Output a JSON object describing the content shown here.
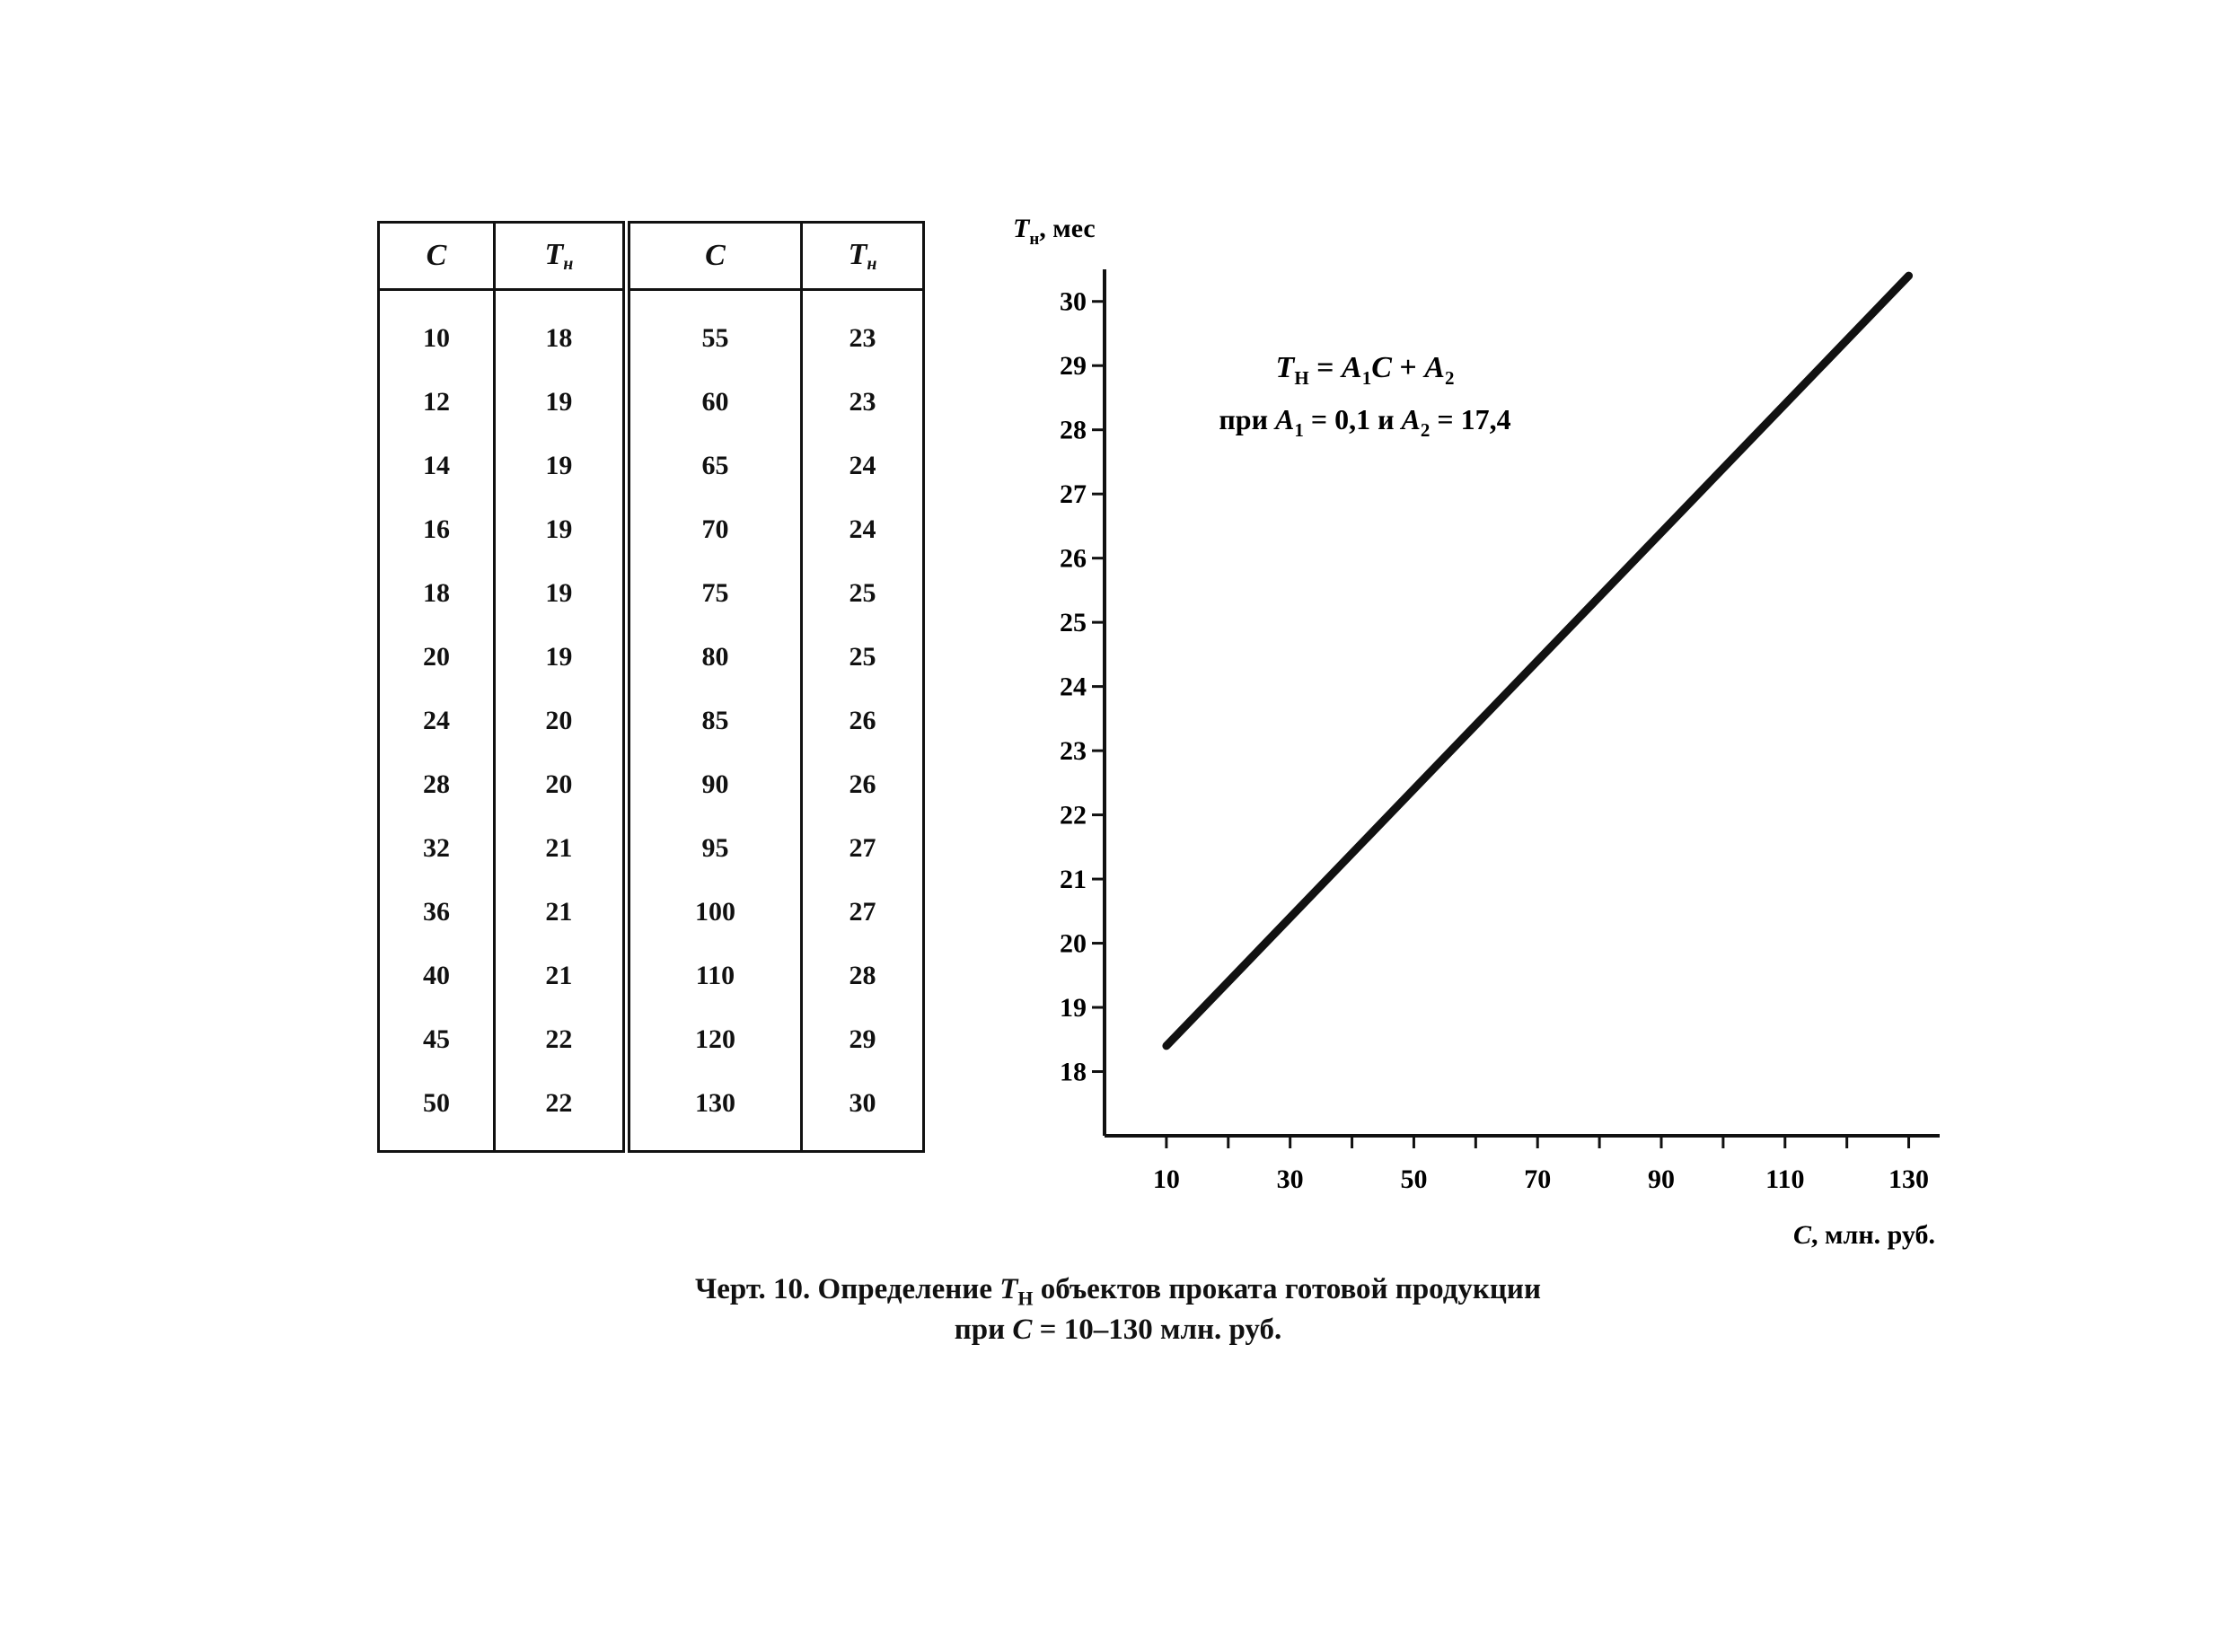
{
  "table": {
    "headers": [
      {
        "sym": "C",
        "sub": ""
      },
      {
        "sym": "T",
        "sub": "н"
      },
      {
        "sym": "C",
        "sub": ""
      },
      {
        "sym": "T",
        "sub": "н"
      }
    ],
    "left_C": [
      "10",
      "12",
      "14",
      "16",
      "18",
      "20",
      "24",
      "28",
      "32",
      "36",
      "40",
      "45",
      "50"
    ],
    "left_T": [
      "18",
      "19",
      "19",
      "19",
      "19",
      "19",
      "20",
      "20",
      "21",
      "21",
      "21",
      "22",
      "22"
    ],
    "right_C": [
      "55",
      "60",
      "65",
      "70",
      "75",
      "80",
      "85",
      "90",
      "95",
      "100",
      "110",
      "120",
      "130"
    ],
    "right_T": [
      "23",
      "23",
      "24",
      "24",
      "25",
      "25",
      "26",
      "26",
      "27",
      "27",
      "28",
      "29",
      "30"
    ]
  },
  "chart_data": {
    "type": "line",
    "y_axis_label": {
      "sym": "T",
      "sub": "н",
      "rest": ", мес"
    },
    "x_axis_label": {
      "sym": "C",
      "rest": ", млн. руб."
    },
    "xlim": [
      0,
      135
    ],
    "ylim": [
      17,
      30.5
    ],
    "x_ticks": [
      10,
      20,
      30,
      40,
      50,
      60,
      70,
      80,
      90,
      100,
      110,
      120,
      130
    ],
    "x_tick_labels": [
      "10",
      "30",
      "50",
      "70",
      "90",
      "110",
      "130"
    ],
    "y_tick_labels": [
      "18",
      "19",
      "20",
      "21",
      "22",
      "23",
      "24",
      "25",
      "26",
      "27",
      "28",
      "29",
      "30"
    ],
    "grid": false,
    "series": [
      {
        "x": [
          10,
          130
        ],
        "y": [
          18.4,
          30.4
        ]
      }
    ],
    "annotation": {
      "formula": {
        "lhs": "T",
        "lhs_sub": "Н",
        "eq": " = ",
        "a1": "A",
        "a1_sub": "1",
        "c": "C",
        "plus": " + ",
        "a2": "A",
        "a2_sub": "2"
      },
      "condition": {
        "pre": "при ",
        "a1": "A",
        "a1_sub": "1",
        "v1": " = 0,1 ",
        "and": "и ",
        "a2": "A",
        "a2_sub": "2",
        "v2": " = 17,4"
      }
    }
  },
  "caption": {
    "line1_pre": "Черт. 10. Определение ",
    "line1_sym": "T",
    "line1_sub": "Н",
    "line1_post": " объектов проката готовой продукции",
    "line2_pre": "при ",
    "line2_sym": "C",
    "line2_post": " = 10–130 млн. руб."
  }
}
